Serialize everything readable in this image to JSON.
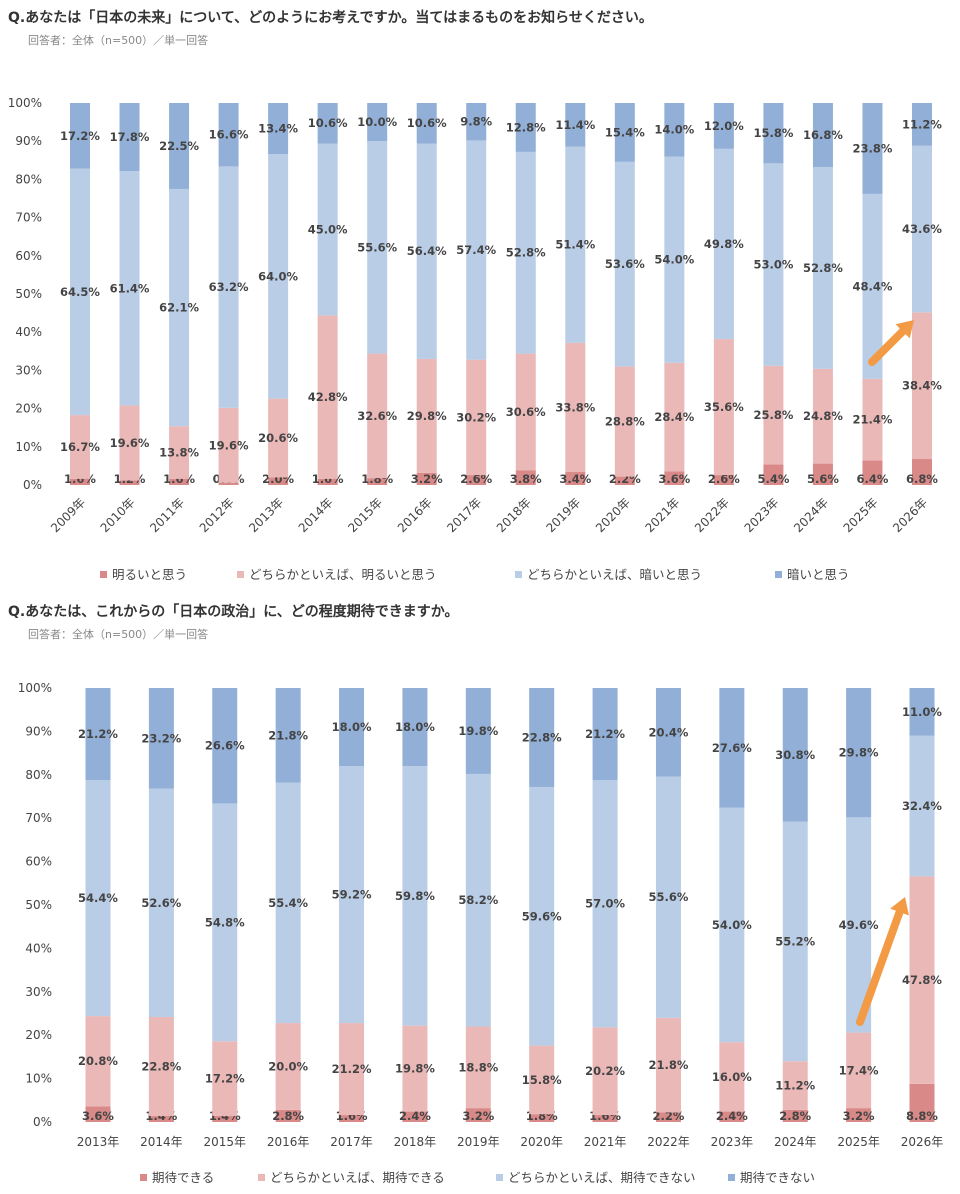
{
  "chart_data": [
    {
      "type": "bar",
      "stacked": true,
      "title": "Q.あなたは「日本の未来」について、どのようにお考えですか。当てはまるものをお知らせください。",
      "subtitle": "回答者：全体（n=500）／単一回答",
      "ylim": [
        0,
        100
      ],
      "yticks": [
        "0%",
        "10%",
        "20%",
        "30%",
        "40%",
        "50%",
        "60%",
        "70%",
        "80%",
        "90%",
        "100%"
      ],
      "legend_position": "bottom",
      "categories": [
        "2009年",
        "2010年",
        "2011年",
        "2012年",
        "2013年",
        "2014年",
        "2015年",
        "2016年",
        "2017年",
        "2018年",
        "2019年",
        "2020年",
        "2021年",
        "2022年",
        "2023年",
        "2024年",
        "2025年",
        "2026年"
      ],
      "series": [
        {
          "name": "明るいと思う",
          "color": "#d98a88",
          "values": [
            1.6,
            1.2,
            1.6,
            0.6,
            2.0,
            1.6,
            1.8,
            3.2,
            2.6,
            3.8,
            3.4,
            2.2,
            3.6,
            2.6,
            5.4,
            5.6,
            6.4,
            6.8
          ]
        },
        {
          "name": "どちらかといえば、明るいと思う",
          "color": "#ebb8b8",
          "values": [
            16.7,
            19.6,
            13.8,
            19.6,
            20.6,
            42.8,
            32.6,
            29.8,
            30.2,
            30.6,
            33.8,
            28.8,
            28.4,
            35.6,
            25.8,
            24.8,
            21.4,
            38.4
          ]
        },
        {
          "name": "どちらかといえば、暗いと思う",
          "color": "#b9cde6",
          "values": [
            64.5,
            61.4,
            62.1,
            63.2,
            64.0,
            45.0,
            55.6,
            56.4,
            57.4,
            52.8,
            51.4,
            53.6,
            54.0,
            49.8,
            53.0,
            52.8,
            48.4,
            43.6
          ]
        },
        {
          "name": "暗いと思う",
          "color": "#92afd7",
          "values": [
            17.2,
            17.8,
            22.5,
            16.6,
            13.4,
            10.6,
            10.0,
            10.6,
            9.8,
            12.8,
            11.4,
            15.4,
            14.0,
            12.0,
            15.8,
            16.8,
            23.8,
            11.2
          ]
        }
      ],
      "annotation": {
        "type": "arrow",
        "color": "#f39a45",
        "target": "2026年"
      }
    },
    {
      "type": "bar",
      "stacked": true,
      "title": "Q.あなたは、これからの「日本の政治」に、どの程度期待できますか。",
      "subtitle": "回答者：全体（n=500）／単一回答",
      "ylim": [
        0,
        100
      ],
      "yticks": [
        "0%",
        "10%",
        "20%",
        "30%",
        "40%",
        "50%",
        "60%",
        "70%",
        "80%",
        "90%",
        "100%"
      ],
      "legend_position": "bottom",
      "categories": [
        "2013年",
        "2014年",
        "2015年",
        "2016年",
        "2017年",
        "2018年",
        "2019年",
        "2020年",
        "2021年",
        "2022年",
        "2023年",
        "2024年",
        "2025年",
        "2026年"
      ],
      "series": [
        {
          "name": "期待できる",
          "color": "#d98a88",
          "values": [
            3.6,
            1.4,
            1.4,
            2.8,
            1.6,
            2.4,
            3.2,
            1.8,
            1.6,
            2.2,
            2.4,
            2.8,
            3.2,
            8.8
          ]
        },
        {
          "name": "どちらかといえば、期待できる",
          "color": "#ebb8b8",
          "values": [
            20.8,
            22.8,
            17.2,
            20.0,
            21.2,
            19.8,
            18.8,
            15.8,
            20.2,
            21.8,
            16.0,
            11.2,
            17.4,
            47.8
          ]
        },
        {
          "name": "どちらかといえば、期待できない",
          "color": "#b9cde6",
          "values": [
            54.4,
            52.6,
            54.8,
            55.4,
            59.2,
            59.8,
            58.2,
            59.6,
            57.0,
            55.6,
            54.0,
            55.2,
            49.6,
            32.4
          ]
        },
        {
          "name": "期待できない",
          "color": "#92afd7",
          "values": [
            21.2,
            23.2,
            26.6,
            21.8,
            18.0,
            18.0,
            19.8,
            22.8,
            21.2,
            20.4,
            27.6,
            30.8,
            29.8,
            11.0
          ]
        }
      ],
      "annotation": {
        "type": "arrow",
        "color": "#f39a45",
        "target": "2026年"
      }
    }
  ]
}
